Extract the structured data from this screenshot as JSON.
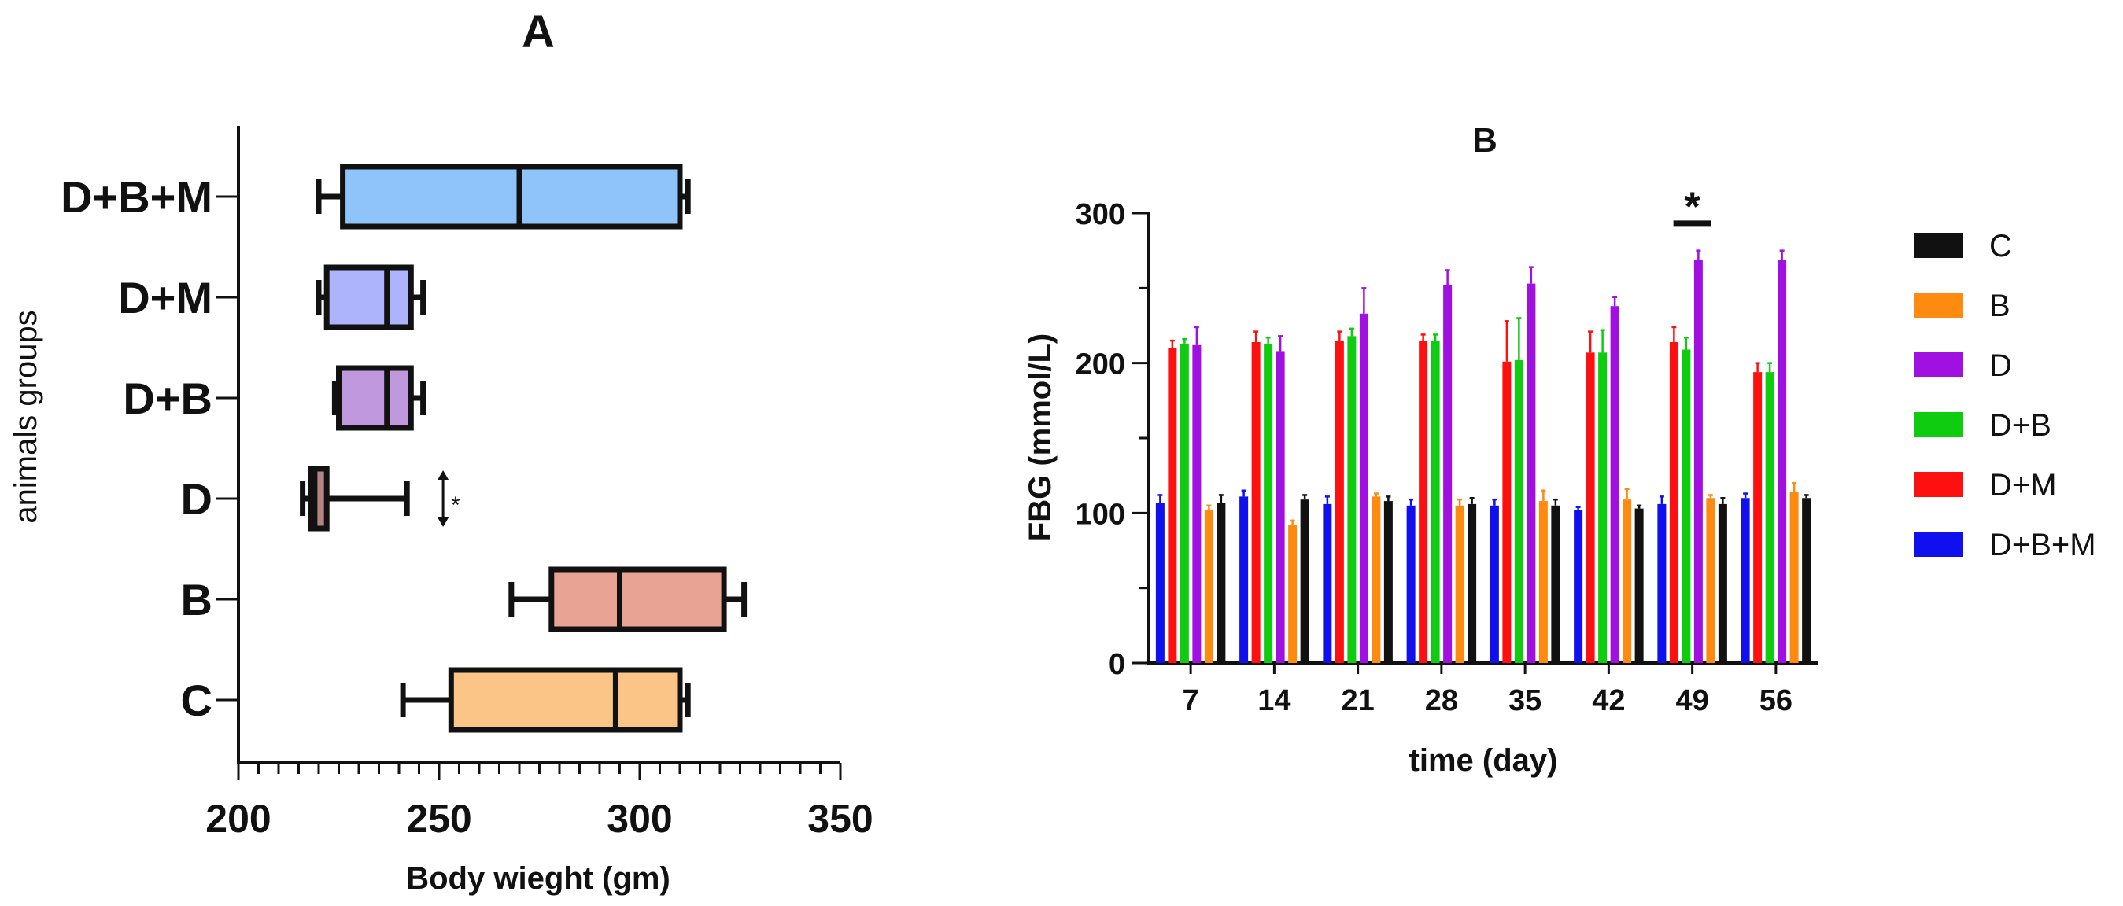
{
  "chart_data": [
    {
      "panel": "A",
      "type": "boxplot",
      "orientation": "horizontal",
      "title": "A",
      "xlabel": "Body wieght (gm)",
      "ylabel": "animals groups",
      "xlim": [
        200,
        350
      ],
      "xticks": [
        200,
        250,
        300,
        350
      ],
      "xtick_labels": [
        "200",
        "250",
        "300",
        "350"
      ],
      "categories": [
        "D+B+M",
        "D+M",
        "D+B",
        "D",
        "B",
        "C"
      ],
      "boxes": [
        {
          "group": "D+B+M",
          "whisker_low": 220,
          "q1": 226,
          "median": 270,
          "q3": 310,
          "whisker_high": 312,
          "color": "#8fc4fb"
        },
        {
          "group": "D+M",
          "whisker_low": 220,
          "q1": 222,
          "median": 237,
          "q3": 243,
          "whisker_high": 246,
          "color": "#aeb4fb"
        },
        {
          "group": "D+B",
          "whisker_low": 224,
          "q1": 225,
          "median": 237,
          "q3": 243,
          "whisker_high": 246,
          "color": "#c098dd"
        },
        {
          "group": "D",
          "whisker_low": 216,
          "q1": 218,
          "median": 219,
          "q3": 222,
          "whisker_high": 242,
          "color": "#b78484"
        },
        {
          "group": "B",
          "whisker_low": 268,
          "q1": 278,
          "median": 295,
          "q3": 321,
          "whisker_high": 326,
          "color": "#e9a395"
        },
        {
          "group": "C",
          "whisker_low": 241,
          "q1": 253,
          "median": 294,
          "q3": 310,
          "whisker_high": 312,
          "color": "#fbc587"
        }
      ],
      "annotation": {
        "group": "D",
        "text": "*",
        "x_value": 251
      }
    },
    {
      "panel": "B",
      "type": "bar",
      "title": "B",
      "xlabel": "time (day)",
      "ylabel": "FBG (mmol/L)",
      "ylim": [
        0,
        300
      ],
      "yticks": [
        0,
        100,
        200,
        300
      ],
      "ytick_labels": [
        "0",
        "100",
        "200",
        "300"
      ],
      "categories": [
        "7",
        "14",
        "21",
        "28",
        "35",
        "42",
        "49",
        "56"
      ],
      "series": [
        {
          "name": "D+B+M",
          "color": "#1010ee",
          "values": [
            107,
            111,
            106,
            105,
            105,
            102,
            106,
            110
          ],
          "errors": [
            5,
            4,
            5,
            4,
            4,
            2,
            5,
            3
          ]
        },
        {
          "name": "D+M",
          "color": "#ff1010",
          "values": [
            210,
            214,
            215,
            215,
            201,
            207,
            214,
            194
          ],
          "errors": [
            5,
            7,
            6,
            4,
            27,
            14,
            10,
            6
          ]
        },
        {
          "name": "D+B",
          "color": "#10cc10",
          "values": [
            213,
            213,
            218,
            215,
            202,
            207,
            209,
            194
          ],
          "errors": [
            3,
            4,
            5,
            4,
            28,
            15,
            8,
            6
          ]
        },
        {
          "name": "D",
          "color": "#a010e0",
          "values": [
            212,
            208,
            233,
            252,
            253,
            238,
            269,
            269
          ],
          "errors": [
            12,
            10,
            17,
            10,
            11,
            6,
            6,
            6
          ]
        },
        {
          "name": "B",
          "color": "#ff8a10",
          "values": [
            102,
            92,
            111,
            105,
            108,
            109,
            110,
            114
          ],
          "errors": [
            3,
            3,
            2,
            4,
            7,
            7,
            2,
            6
          ]
        },
        {
          "name": "C",
          "color": "#111111",
          "values": [
            107,
            109,
            108,
            106,
            105,
            103,
            106,
            110
          ],
          "errors": [
            5,
            3,
            3,
            4,
            4,
            2,
            4,
            2
          ]
        }
      ],
      "legend_order": [
        "C",
        "B",
        "D",
        "D+B",
        "D+M",
        "D+B+M"
      ],
      "legend_position": "right",
      "annotation": {
        "text": "*",
        "category": "49",
        "y_value": 293
      }
    }
  ]
}
